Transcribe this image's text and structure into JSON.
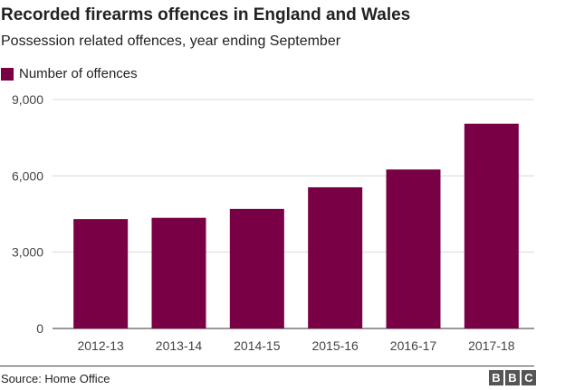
{
  "header": {
    "title": "Recorded firearms offences in England and Wales",
    "subtitle": "Possession related offences, year ending September"
  },
  "footer": {
    "source": "Source: Home Office",
    "logo_letters": [
      "B",
      "B",
      "C"
    ]
  },
  "colors": {
    "bar": "#7a0046",
    "grid": "#d9d9d9",
    "axis": "#333333"
  },
  "chart_data": {
    "type": "bar",
    "title": "Recorded firearms offences in England and Wales",
    "subtitle": "Possession related offences, year ending September",
    "categories": [
      "2012-13",
      "2013-14",
      "2014-15",
      "2015-16",
      "2016-17",
      "2017-18"
    ],
    "series": [
      {
        "name": "Number of offences",
        "values": [
          4300,
          4350,
          4700,
          5550,
          6250,
          8050
        ]
      }
    ],
    "ylim": [
      0,
      9000
    ],
    "yticks": [
      0,
      3000,
      6000,
      9000
    ],
    "ytick_labels": [
      "0",
      "3,000",
      "6,000",
      "9,000"
    ],
    "grid": true,
    "legend": "top-left",
    "xlabel": "",
    "ylabel": ""
  }
}
